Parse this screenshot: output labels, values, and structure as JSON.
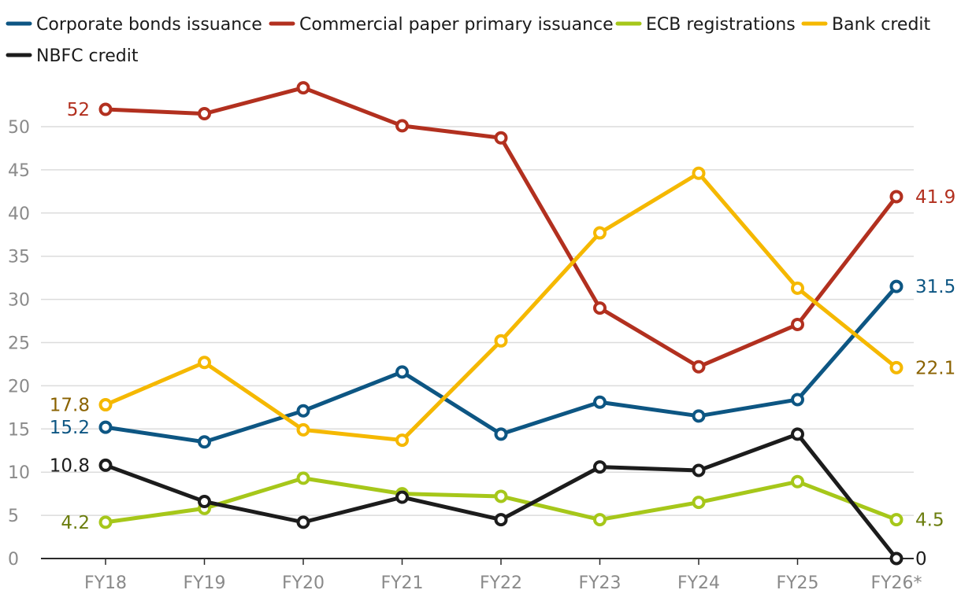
{
  "chart_data": {
    "type": "line",
    "title": "",
    "xlabel": "",
    "ylabel": "",
    "categories": [
      "FY18",
      "FY19",
      "FY20",
      "FY21",
      "FY22",
      "FY23",
      "FY24",
      "FY25",
      "FY26*"
    ],
    "ylim": [
      0,
      55
    ],
    "yticks": [
      "0",
      "5",
      "10",
      "15",
      "20",
      "25",
      "30",
      "35",
      "40",
      "45",
      "50"
    ],
    "grid": true,
    "legend_position": "top",
    "series": [
      {
        "name": "Corporate bonds issuance",
        "color": "#0d5683",
        "label_color": "#0d5683",
        "values": [
          15.2,
          13.5,
          17.1,
          21.6,
          14.4,
          18.1,
          16.5,
          18.4,
          31.5
        ],
        "start_label": "15.2",
        "end_label": "31.5"
      },
      {
        "name": "Commercial paper primary issuance",
        "color": "#b2301f",
        "label_color": "#b2301f",
        "values": [
          52,
          51.5,
          54.5,
          50.1,
          48.7,
          29,
          22.2,
          27.1,
          41.9
        ],
        "start_label": "52",
        "end_label": "41.9"
      },
      {
        "name": "ECB registrations",
        "color": "#a6c71a",
        "label_color": "#6b7d0e",
        "values": [
          4.2,
          5.8,
          9.3,
          7.5,
          7.2,
          4.5,
          6.5,
          8.9,
          4.5
        ],
        "start_label": "4.2",
        "end_label": "4.5"
      },
      {
        "name": "Bank credit",
        "color": "#f5b800",
        "label_color": "#8a6200",
        "values": [
          17.8,
          22.7,
          14.9,
          13.7,
          25.2,
          37.7,
          44.6,
          31.3,
          22.1
        ],
        "start_label": "17.8",
        "end_label": "22.1"
      },
      {
        "name": "NBFC credit",
        "color": "#1c1c1c",
        "label_color": "#1c1c1c",
        "values": [
          10.8,
          6.6,
          4.2,
          7.1,
          4.5,
          10.6,
          10.2,
          14.4,
          0
        ],
        "start_label": "10.8",
        "end_label": "0"
      }
    ]
  }
}
